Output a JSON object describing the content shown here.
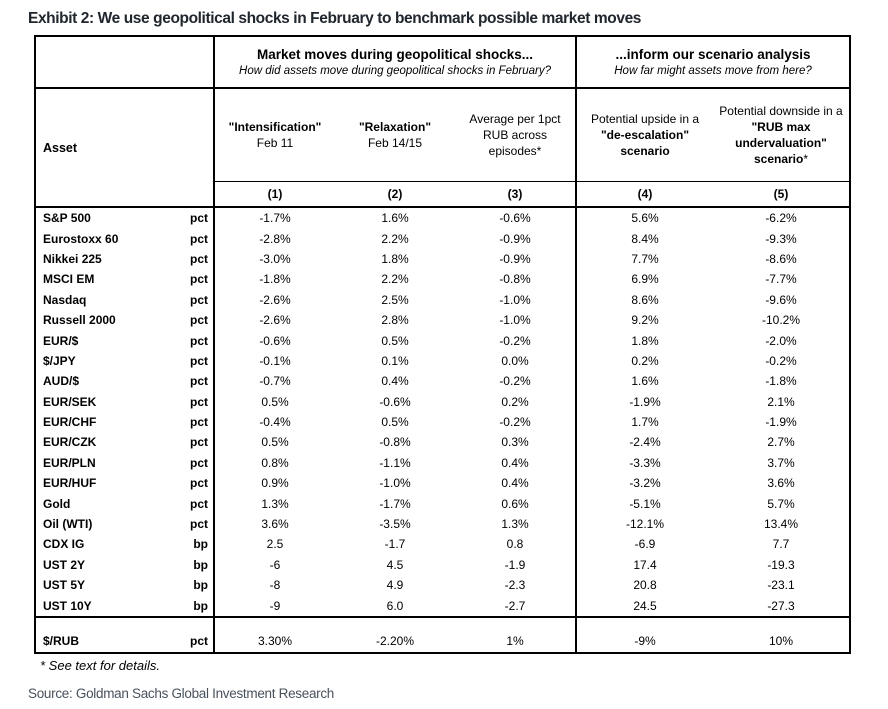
{
  "title": "Exhibit 2: We use geopolitical shocks in February to benchmark possible market moves",
  "table": {
    "groups": [
      {
        "title": "Market moves during geopolitical shocks...",
        "subtitle": "How did assets move during geopolitical shocks in February?"
      },
      {
        "title": "...inform our scenario analysis",
        "subtitle": "How far might assets move from here?"
      }
    ],
    "asset_header": "Asset",
    "columns": [
      {
        "bold": "\"Intensification\"",
        "plain": "Feb 11",
        "num": "(1)"
      },
      {
        "bold": "\"Relaxation\"",
        "plain": "Feb 14/15",
        "num": "(2)"
      },
      {
        "plain": "Average per 1pct RUB across episodes*",
        "num": "(3)"
      },
      {
        "plain": "Potential upside in a",
        "bold": "\"de-escalation\" scenario",
        "num": "(4)"
      },
      {
        "plain": "Potential downside in a",
        "bold": "\"RUB max undervaluation\" scenario",
        "suffix": "*",
        "num": "(5)"
      }
    ],
    "rows": [
      {
        "asset": "S&P 500",
        "unit": "pct",
        "values": [
          "-1.7%",
          "1.6%",
          "-0.6%",
          "5.6%",
          "-6.2%"
        ]
      },
      {
        "asset": "Eurostoxx 60",
        "unit": "pct",
        "values": [
          "-2.8%",
          "2.2%",
          "-0.9%",
          "8.4%",
          "-9.3%"
        ]
      },
      {
        "asset": "Nikkei 225",
        "unit": "pct",
        "values": [
          "-3.0%",
          "1.8%",
          "-0.9%",
          "7.7%",
          "-8.6%"
        ]
      },
      {
        "asset": "MSCI EM",
        "unit": "pct",
        "values": [
          "-1.8%",
          "2.2%",
          "-0.8%",
          "6.9%",
          "-7.7%"
        ]
      },
      {
        "asset": "Nasdaq",
        "unit": "pct",
        "values": [
          "-2.6%",
          "2.5%",
          "-1.0%",
          "8.6%",
          "-9.6%"
        ]
      },
      {
        "asset": "Russell 2000",
        "unit": "pct",
        "values": [
          "-2.6%",
          "2.8%",
          "-1.0%",
          "9.2%",
          "-10.2%"
        ]
      },
      {
        "asset": "EUR/$",
        "unit": "pct",
        "values": [
          "-0.6%",
          "0.5%",
          "-0.2%",
          "1.8%",
          "-2.0%"
        ]
      },
      {
        "asset": "$/JPY",
        "unit": "pct",
        "values": [
          "-0.1%",
          "0.1%",
          "0.0%",
          "0.2%",
          "-0.2%"
        ]
      },
      {
        "asset": "AUD/$",
        "unit": "pct",
        "values": [
          "-0.7%",
          "0.4%",
          "-0.2%",
          "1.6%",
          "-1.8%"
        ]
      },
      {
        "asset": "EUR/SEK",
        "unit": "pct",
        "values": [
          "0.5%",
          "-0.6%",
          "0.2%",
          "-1.9%",
          "2.1%"
        ]
      },
      {
        "asset": "EUR/CHF",
        "unit": "pct",
        "values": [
          "-0.4%",
          "0.5%",
          "-0.2%",
          "1.7%",
          "-1.9%"
        ]
      },
      {
        "asset": "EUR/CZK",
        "unit": "pct",
        "values": [
          "0.5%",
          "-0.8%",
          "0.3%",
          "-2.4%",
          "2.7%"
        ]
      },
      {
        "asset": "EUR/PLN",
        "unit": "pct",
        "values": [
          "0.8%",
          "-1.1%",
          "0.4%",
          "-3.3%",
          "3.7%"
        ]
      },
      {
        "asset": "EUR/HUF",
        "unit": "pct",
        "values": [
          "0.9%",
          "-1.0%",
          "0.4%",
          "-3.2%",
          "3.6%"
        ]
      },
      {
        "asset": "Gold",
        "unit": "pct",
        "values": [
          "1.3%",
          "-1.7%",
          "0.6%",
          "-5.1%",
          "5.7%"
        ]
      },
      {
        "asset": "Oil (WTI)",
        "unit": "pct",
        "values": [
          "3.6%",
          "-3.5%",
          "1.3%",
          "-12.1%",
          "13.4%"
        ]
      },
      {
        "asset": "CDX IG",
        "unit": "bp",
        "values": [
          "2.5",
          "-1.7",
          "0.8",
          "-6.9",
          "7.7"
        ]
      },
      {
        "asset": "UST 2Y",
        "unit": "bp",
        "values": [
          "-6",
          "4.5",
          "-1.9",
          "17.4",
          "-19.3"
        ]
      },
      {
        "asset": "UST 5Y",
        "unit": "bp",
        "values": [
          "-8",
          "4.9",
          "-2.3",
          "20.8",
          "-23.1"
        ]
      },
      {
        "asset": "UST 10Y",
        "unit": "bp",
        "values": [
          "-9",
          "6.0",
          "-2.7",
          "24.5",
          "-27.3"
        ]
      }
    ],
    "rub_row": {
      "asset": "$/RUB",
      "unit": "pct",
      "values": [
        "3.30%",
        "-2.20%",
        "1%",
        "-9%",
        "10%"
      ]
    }
  },
  "footnote": "* See text for details.",
  "source": "Source: Goldman Sachs Global Investment Research"
}
